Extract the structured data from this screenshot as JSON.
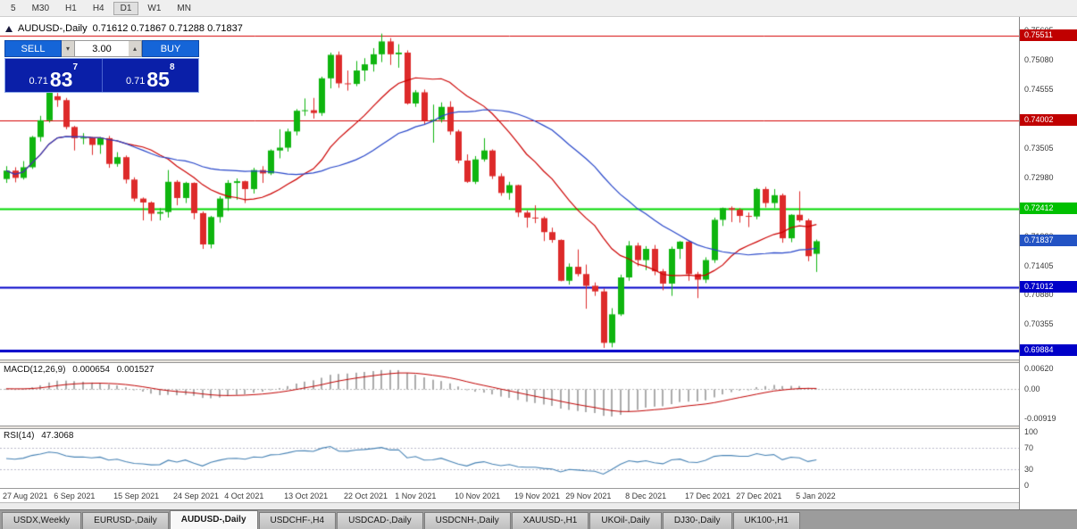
{
  "toolbar": {
    "timeframes": [
      "5",
      "M30",
      "H1",
      "H4",
      "D1",
      "W1",
      "MN"
    ],
    "active": "D1"
  },
  "chart": {
    "title_symbol": "AUDUSD-,Daily",
    "title_ohlc": "0.71612 0.71867 0.71288 0.71837"
  },
  "trade": {
    "sell_label": "SELL",
    "buy_label": "BUY",
    "volume": "3.00",
    "sell_price": {
      "prefix": "0.71",
      "big": "83",
      "sup": "7"
    },
    "buy_price": {
      "prefix": "0.71",
      "big": "85",
      "sup": "8"
    }
  },
  "icons": {
    "spin_up": "▴",
    "spin_down": "▾"
  },
  "indicators": {
    "macd": {
      "label": "MACD(12,26,9)",
      "value_main": "0.000654",
      "value_signal": "0.001527",
      "ticks": [
        {
          "v": 0.0062,
          "t": "0.00620"
        },
        {
          "v": 0,
          "t": "0.00"
        },
        {
          "v": -0.00919,
          "t": "-0.00919"
        }
      ],
      "scale": {
        "max": 0.0068,
        "min": -0.0102
      },
      "colors": {
        "histogram": "#ababab",
        "signal": "#c00000"
      }
    },
    "rsi": {
      "label": "RSI(14)",
      "value": "47.3068",
      "ticks": [
        {
          "v": 100,
          "t": "100"
        },
        {
          "v": 70,
          "t": "70"
        },
        {
          "v": 30,
          "t": "30"
        },
        {
          "v": 0,
          "t": "0"
        }
      ],
      "levels": [
        70,
        30
      ],
      "color": "#4682b4"
    }
  },
  "price_axis": {
    "ticks": [
      "0.75605",
      "0.75080",
      "0.74555",
      "0.74030",
      "0.73505",
      "0.72980",
      "0.72455",
      "0.71930",
      "0.71405",
      "0.70880",
      "0.70355",
      "0.69830"
    ],
    "badges": [
      {
        "text": "0.75511",
        "color": "#c00000"
      },
      {
        "text": "0.74002",
        "color": "#c00000"
      },
      {
        "text": "0.72412",
        "color": "#00c000"
      },
      {
        "text": "0.71837",
        "color": "#2353c4",
        "current": true
      },
      {
        "text": "0.71012",
        "color": "#0000c8"
      },
      {
        "text": "0.69884",
        "color": "#0000c8"
      }
    ]
  },
  "levels": [
    {
      "value": 0.75511,
      "color": "#d40000",
      "width": 1
    },
    {
      "value": 0.74002,
      "color": "#d40000",
      "width": 1
    },
    {
      "value": 0.72412,
      "color": "#00d800",
      "width": 2
    },
    {
      "value": 0.71012,
      "color": "#0000c8",
      "width": 2
    },
    {
      "value": 0.69884,
      "color": "#0000c8",
      "width": 3
    }
  ],
  "chart_data": {
    "type": "candlestick",
    "symbol": "AUDUSD-",
    "timeframe": "Daily",
    "up_color": "#0fb50f",
    "down_color": "#dd2a2a",
    "y_range": {
      "max": 0.7572,
      "min": 0.6985
    },
    "ma": [
      {
        "period": 15,
        "color": "#cc0000"
      },
      {
        "period": 28,
        "color": "#2746c9"
      }
    ],
    "x_labels": [
      {
        "index": 0,
        "label": "27 Aug 2021"
      },
      {
        "index": 6,
        "label": "6 Sep 2021"
      },
      {
        "index": 13,
        "label": "15 Sep 2021"
      },
      {
        "index": 20,
        "label": "24 Sep 2021"
      },
      {
        "index": 26,
        "label": "4 Oct 2021"
      },
      {
        "index": 33,
        "label": "13 Oct 2021"
      },
      {
        "index": 40,
        "label": "22 Oct 2021"
      },
      {
        "index": 46,
        "label": "1 Nov 2021"
      },
      {
        "index": 53,
        "label": "10 Nov 2021"
      },
      {
        "index": 60,
        "label": "19 Nov 2021"
      },
      {
        "index": 66,
        "label": "29 Nov 2021"
      },
      {
        "index": 73,
        "label": "8 Dec 2021"
      },
      {
        "index": 80,
        "label": "17 Dec 2021"
      },
      {
        "index": 86,
        "label": "27 Dec 2021"
      },
      {
        "index": 93,
        "label": "5 Jan 2022"
      }
    ],
    "ohlc": [
      [
        0.7295,
        0.7318,
        0.7288,
        0.731
      ],
      [
        0.731,
        0.7316,
        0.7289,
        0.7297
      ],
      [
        0.7297,
        0.7327,
        0.7294,
        0.7316
      ],
      [
        0.7316,
        0.7372,
        0.7313,
        0.737
      ],
      [
        0.737,
        0.7408,
        0.7362,
        0.74
      ],
      [
        0.74,
        0.7477,
        0.7396,
        0.745
      ],
      [
        0.7443,
        0.7449,
        0.7424,
        0.7436
      ],
      [
        0.7436,
        0.744,
        0.7384,
        0.7388
      ],
      [
        0.7388,
        0.739,
        0.7346,
        0.7368
      ],
      [
        0.7368,
        0.7377,
        0.7357,
        0.7369
      ],
      [
        0.7369,
        0.737,
        0.7338,
        0.7356
      ],
      [
        0.7356,
        0.737,
        0.734,
        0.7368
      ],
      [
        0.7368,
        0.7372,
        0.7315,
        0.7322
      ],
      [
        0.7322,
        0.7343,
        0.7317,
        0.7334
      ],
      [
        0.7334,
        0.7337,
        0.7287,
        0.7294
      ],
      [
        0.7294,
        0.7298,
        0.7255,
        0.726
      ],
      [
        0.726,
        0.7262,
        0.7221,
        0.7253
      ],
      [
        0.7253,
        0.7255,
        0.722,
        0.7233
      ],
      [
        0.7233,
        0.7243,
        0.7221,
        0.7236
      ],
      [
        0.7236,
        0.7311,
        0.7226,
        0.729
      ],
      [
        0.729,
        0.7293,
        0.7248,
        0.7261
      ],
      [
        0.7261,
        0.729,
        0.7252,
        0.7288
      ],
      [
        0.7288,
        0.7289,
        0.7223,
        0.7234
      ],
      [
        0.7234,
        0.7237,
        0.717,
        0.7178
      ],
      [
        0.7178,
        0.7229,
        0.7171,
        0.7227
      ],
      [
        0.7227,
        0.7264,
        0.7217,
        0.726
      ],
      [
        0.726,
        0.7293,
        0.7238,
        0.7288
      ],
      [
        0.7288,
        0.7296,
        0.7258,
        0.7291
      ],
      [
        0.7291,
        0.7292,
        0.7252,
        0.7277
      ],
      [
        0.7277,
        0.7315,
        0.7269,
        0.7311
      ],
      [
        0.7311,
        0.7318,
        0.7288,
        0.7305
      ],
      [
        0.7305,
        0.7348,
        0.7302,
        0.7346
      ],
      [
        0.7346,
        0.7384,
        0.7332,
        0.7351
      ],
      [
        0.7351,
        0.7385,
        0.7344,
        0.738
      ],
      [
        0.738,
        0.742,
        0.7373,
        0.7417
      ],
      [
        0.7417,
        0.7439,
        0.7408,
        0.7418
      ],
      [
        0.7418,
        0.744,
        0.7403,
        0.7413
      ],
      [
        0.7413,
        0.7478,
        0.7408,
        0.7475
      ],
      [
        0.7475,
        0.7521,
        0.7457,
        0.7517
      ],
      [
        0.7517,
        0.7523,
        0.7458,
        0.7466
      ],
      [
        0.7466,
        0.7489,
        0.7453,
        0.7465
      ],
      [
        0.7465,
        0.7506,
        0.7461,
        0.7489
      ],
      [
        0.7489,
        0.7511,
        0.747,
        0.75
      ],
      [
        0.75,
        0.7529,
        0.7487,
        0.7518
      ],
      [
        0.7518,
        0.7555,
        0.7504,
        0.7541
      ],
      [
        0.7541,
        0.7547,
        0.7499,
        0.7518
      ],
      [
        0.7518,
        0.7536,
        0.7494,
        0.7521
      ],
      [
        0.7521,
        0.7525,
        0.7428,
        0.743
      ],
      [
        0.743,
        0.7454,
        0.7424,
        0.745
      ],
      [
        0.745,
        0.7455,
        0.7393,
        0.7399
      ],
      [
        0.7399,
        0.7428,
        0.736,
        0.7401
      ],
      [
        0.7401,
        0.7432,
        0.7396,
        0.7424
      ],
      [
        0.7424,
        0.7434,
        0.7374,
        0.738
      ],
      [
        0.738,
        0.7383,
        0.7323,
        0.7328
      ],
      [
        0.7328,
        0.7339,
        0.7288,
        0.729
      ],
      [
        0.729,
        0.7336,
        0.7286,
        0.733
      ],
      [
        0.733,
        0.7368,
        0.7326,
        0.7346
      ],
      [
        0.7346,
        0.7348,
        0.7295,
        0.73
      ],
      [
        0.73,
        0.7305,
        0.7265,
        0.727
      ],
      [
        0.727,
        0.729,
        0.7258,
        0.7284
      ],
      [
        0.7284,
        0.7285,
        0.7227,
        0.7235
      ],
      [
        0.7235,
        0.7239,
        0.7208,
        0.7226
      ],
      [
        0.7226,
        0.7248,
        0.7216,
        0.7225
      ],
      [
        0.7225,
        0.7228,
        0.7184,
        0.72
      ],
      [
        0.72,
        0.7208,
        0.7181,
        0.7186
      ],
      [
        0.7186,
        0.7187,
        0.7112,
        0.7113
      ],
      [
        0.7113,
        0.7144,
        0.7106,
        0.7138
      ],
      [
        0.7138,
        0.7169,
        0.7121,
        0.7125
      ],
      [
        0.7125,
        0.7142,
        0.7063,
        0.7104
      ],
      [
        0.7104,
        0.711,
        0.7086,
        0.7094
      ],
      [
        0.7094,
        0.7099,
        0.6993,
        0.7002
      ],
      [
        0.7002,
        0.7064,
        0.6994,
        0.7053
      ],
      [
        0.7053,
        0.7124,
        0.705,
        0.7119
      ],
      [
        0.7119,
        0.7184,
        0.7113,
        0.7176
      ],
      [
        0.7176,
        0.7181,
        0.7139,
        0.715
      ],
      [
        0.715,
        0.7175,
        0.7132,
        0.717
      ],
      [
        0.717,
        0.7177,
        0.7123,
        0.713
      ],
      [
        0.713,
        0.7134,
        0.7096,
        0.7108
      ],
      [
        0.7108,
        0.7174,
        0.7086,
        0.717
      ],
      [
        0.717,
        0.7184,
        0.7152,
        0.7183
      ],
      [
        0.7183,
        0.7185,
        0.7113,
        0.7125
      ],
      [
        0.7125,
        0.7129,
        0.7082,
        0.7115
      ],
      [
        0.7115,
        0.7155,
        0.7109,
        0.715
      ],
      [
        0.715,
        0.7226,
        0.7145,
        0.7222
      ],
      [
        0.7222,
        0.7244,
        0.7211,
        0.7243
      ],
      [
        0.7243,
        0.7246,
        0.7218,
        0.724
      ],
      [
        0.724,
        0.7243,
        0.7217,
        0.7229
      ],
      [
        0.7229,
        0.7235,
        0.7209,
        0.7228
      ],
      [
        0.7228,
        0.7279,
        0.7223,
        0.7277
      ],
      [
        0.7277,
        0.7281,
        0.7244,
        0.7252
      ],
      [
        0.7252,
        0.7277,
        0.7243,
        0.7266
      ],
      [
        0.7266,
        0.7269,
        0.7181,
        0.7189
      ],
      [
        0.7189,
        0.7232,
        0.7182,
        0.7231
      ],
      [
        0.7231,
        0.7273,
        0.7218,
        0.7221
      ],
      [
        0.7221,
        0.7224,
        0.7148,
        0.7157
      ],
      [
        0.71612,
        0.71867,
        0.71288,
        0.71837
      ]
    ]
  },
  "tabs": {
    "items": [
      "USDX,Weekly",
      "EURUSD-,Daily",
      "AUDUSD-,Daily",
      "USDCHF-,H4",
      "USDCAD-,Daily",
      "USDCNH-,Daily",
      "XAUUSD-,H1",
      "UKOil-,Daily",
      "DJ30-,Daily",
      "UK100-,H1"
    ],
    "active_index": 2
  }
}
